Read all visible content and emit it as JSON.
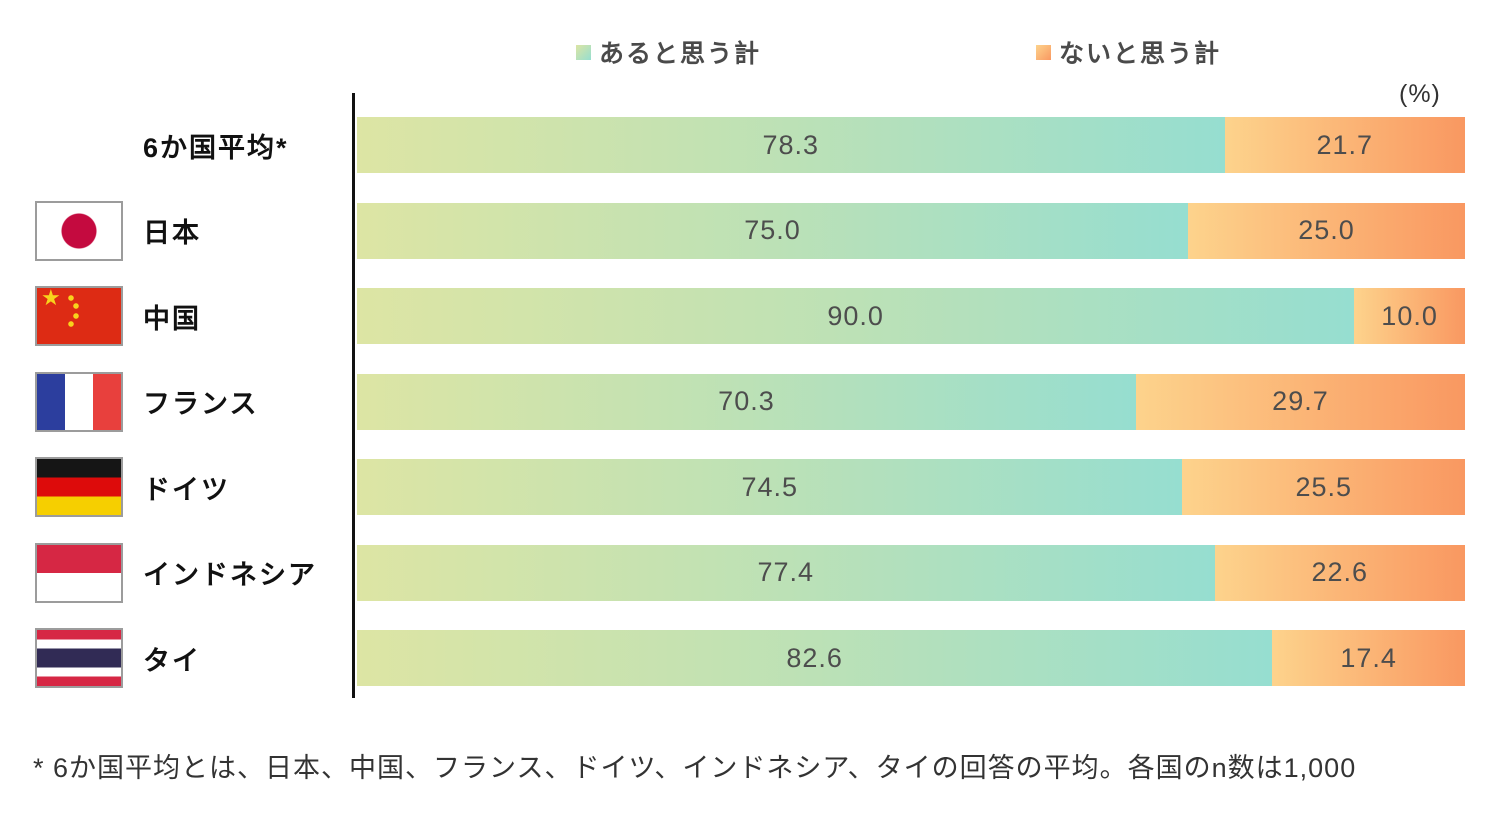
{
  "legend": [
    {
      "label": "あると思う計",
      "color_start": "#dde5a4",
      "color_end": "#96ded0"
    },
    {
      "label": "ないと思う計",
      "color_start": "#fdd38c",
      "color_end": "#f99861"
    }
  ],
  "unit_label": "(%)",
  "footnote": "* 6か国平均とは、日本、中国、フランス、ドイツ、インドネシア、タイの回答の平均。各国のn数は1,000",
  "chart_data": {
    "type": "bar",
    "orientation": "horizontal",
    "stacked": true,
    "unit": "%",
    "xlim": [
      0,
      100
    ],
    "grid": false,
    "legend_position": "top",
    "categories": [
      "6か国平均*",
      "日本",
      "中国",
      "フランス",
      "ドイツ",
      "インドネシア",
      "タイ"
    ],
    "flags": [
      "none",
      "jp",
      "cn",
      "fr",
      "de",
      "id",
      "th"
    ],
    "series": [
      {
        "name": "あると思う計",
        "color": "gradient #dde5a4 to #96ded0",
        "values": [
          78.3,
          75.0,
          90.0,
          70.3,
          74.5,
          77.4,
          82.6
        ]
      },
      {
        "name": "ないと思う計",
        "color": "gradient #fdd38c to #f99861",
        "values": [
          21.7,
          25.0,
          10.0,
          29.7,
          25.5,
          22.6,
          17.4
        ]
      }
    ]
  }
}
